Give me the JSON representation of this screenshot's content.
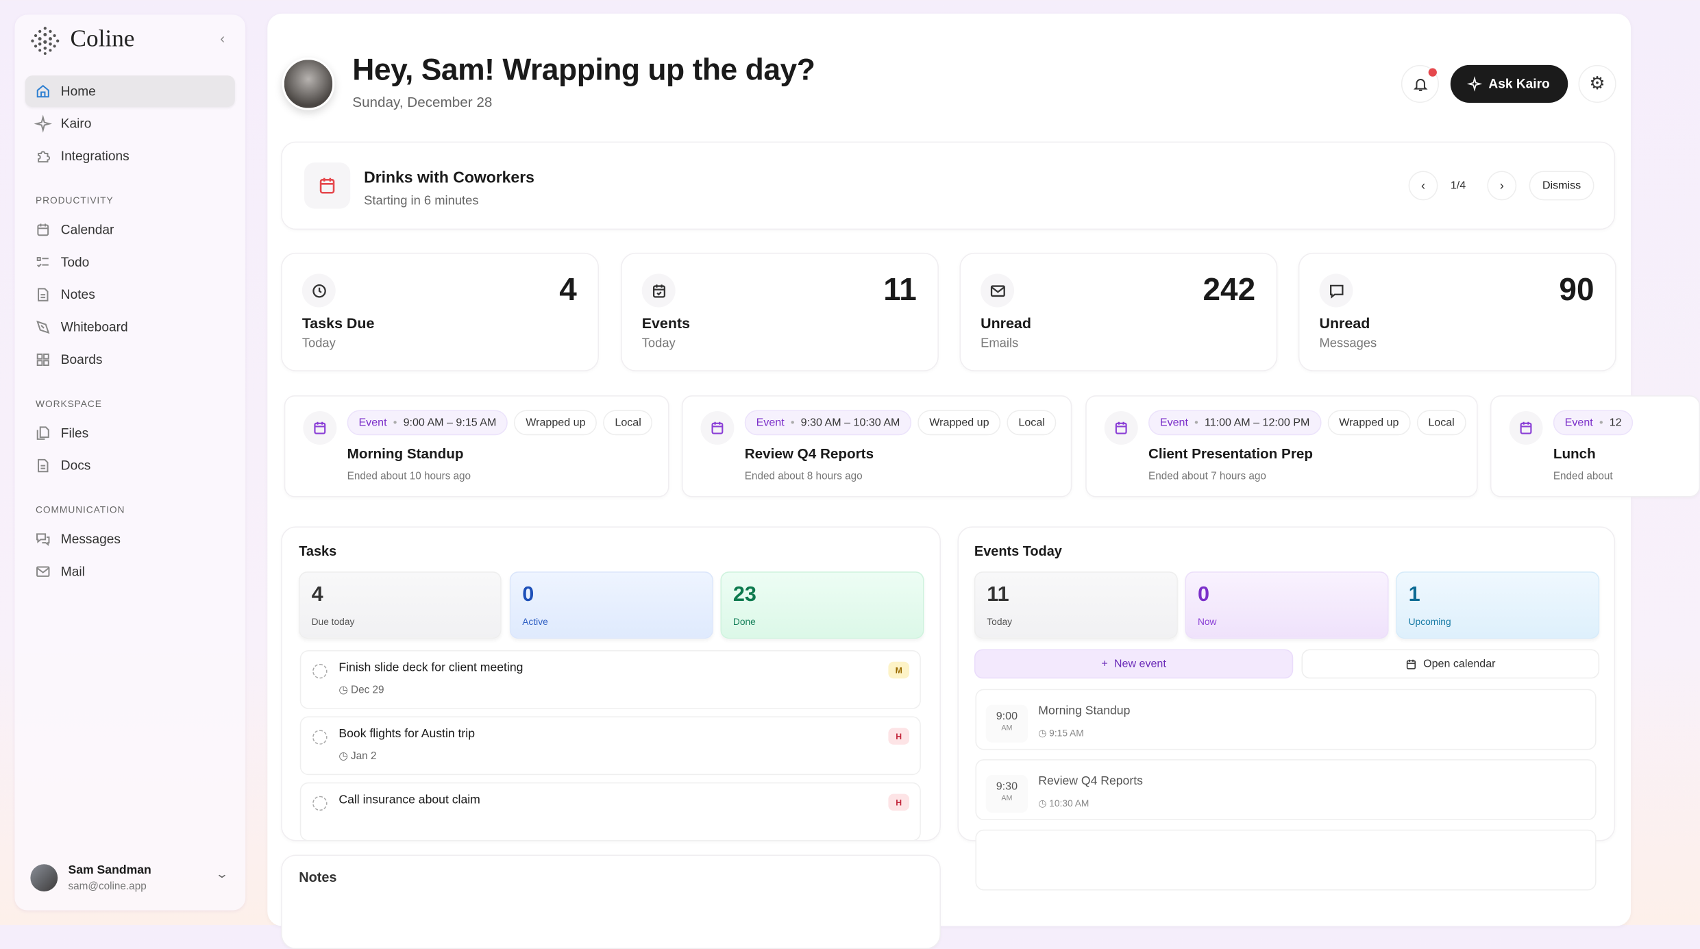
{
  "app": {
    "name": "Coline"
  },
  "sidebar": {
    "items": [
      {
        "label": "Home",
        "icon": "home-icon"
      },
      {
        "label": "Kairo",
        "icon": "sparkle-icon"
      },
      {
        "label": "Integrations",
        "icon": "puzzle-icon"
      }
    ],
    "sections": [
      {
        "title": "PRODUCTIVITY",
        "items": [
          {
            "label": "Calendar"
          },
          {
            "label": "Todo"
          },
          {
            "label": "Notes"
          },
          {
            "label": "Whiteboard"
          },
          {
            "label": "Boards"
          }
        ]
      },
      {
        "title": "WORKSPACE",
        "items": [
          {
            "label": "Files"
          },
          {
            "label": "Docs"
          }
        ]
      },
      {
        "title": "COMMUNICATION",
        "items": [
          {
            "label": "Messages"
          },
          {
            "label": "Mail"
          }
        ]
      }
    ],
    "user": {
      "name": "Sam Sandman",
      "email": "sam@coline.app"
    }
  },
  "header": {
    "greeting": "Hey, Sam! Wrapping up the day?",
    "date": "Sunday, December 28",
    "ask_label": "Ask Kairo",
    "notification_dot_color": "#e5484d"
  },
  "banner": {
    "title": "Drinks with Coworkers",
    "subtitle": "Starting in 6 minutes",
    "pager": "1/4",
    "dismiss": "Dismiss"
  },
  "stats": [
    {
      "value": "4",
      "label": "Tasks Due",
      "sub": "Today",
      "icon": "clock-icon"
    },
    {
      "value": "11",
      "label": "Events",
      "sub": "Today",
      "icon": "calendar-check-icon"
    },
    {
      "value": "242",
      "label": "Unread",
      "sub": "Emails",
      "icon": "mail-icon"
    },
    {
      "value": "90",
      "label": "Unread",
      "sub": "Messages",
      "icon": "message-icon"
    }
  ],
  "event_cards": [
    {
      "kind": "Event",
      "time": "9:00 AM – 9:15 AM",
      "status": "Wrapped up",
      "scope": "Local",
      "title": "Morning Standup",
      "sub": "Ended about 10 hours ago"
    },
    {
      "kind": "Event",
      "time": "9:30 AM – 10:30 AM",
      "status": "Wrapped up",
      "scope": "Local",
      "title": "Review Q4 Reports",
      "sub": "Ended about 8 hours ago"
    },
    {
      "kind": "Event",
      "time": "11:00 AM – 12:00 PM",
      "status": "Wrapped up",
      "scope": "Local",
      "title": "Client Presentation Prep",
      "sub": "Ended about 7 hours ago"
    },
    {
      "kind": "Event",
      "time": "12",
      "title": "Lunch",
      "sub": "Ended about"
    }
  ],
  "tasks": {
    "title": "Tasks",
    "tiles": [
      {
        "value": "4",
        "label": "Due today"
      },
      {
        "value": "0",
        "label": "Active"
      },
      {
        "value": "23",
        "label": "Done"
      }
    ],
    "items": [
      {
        "title": "Finish slide deck for client meeting",
        "due": "Dec 29",
        "priority": "M"
      },
      {
        "title": "Book flights for Austin trip",
        "due": "Jan 2",
        "priority": "H"
      },
      {
        "title": "Call insurance about claim",
        "priority": "H"
      }
    ]
  },
  "events_today": {
    "title": "Events Today",
    "tiles": [
      {
        "value": "11",
        "label": "Today"
      },
      {
        "value": "0",
        "label": "Now"
      },
      {
        "value": "1",
        "label": "Upcoming"
      }
    ],
    "new_event": "New event",
    "open_calendar": "Open calendar",
    "items": [
      {
        "time": "9:00",
        "ampm": "AM",
        "title": "Morning Standup",
        "end": "9:15 AM"
      },
      {
        "time": "9:30",
        "ampm": "AM",
        "title": "Review Q4 Reports",
        "end": "10:30 AM"
      }
    ]
  },
  "notes": {
    "title": "Notes"
  }
}
